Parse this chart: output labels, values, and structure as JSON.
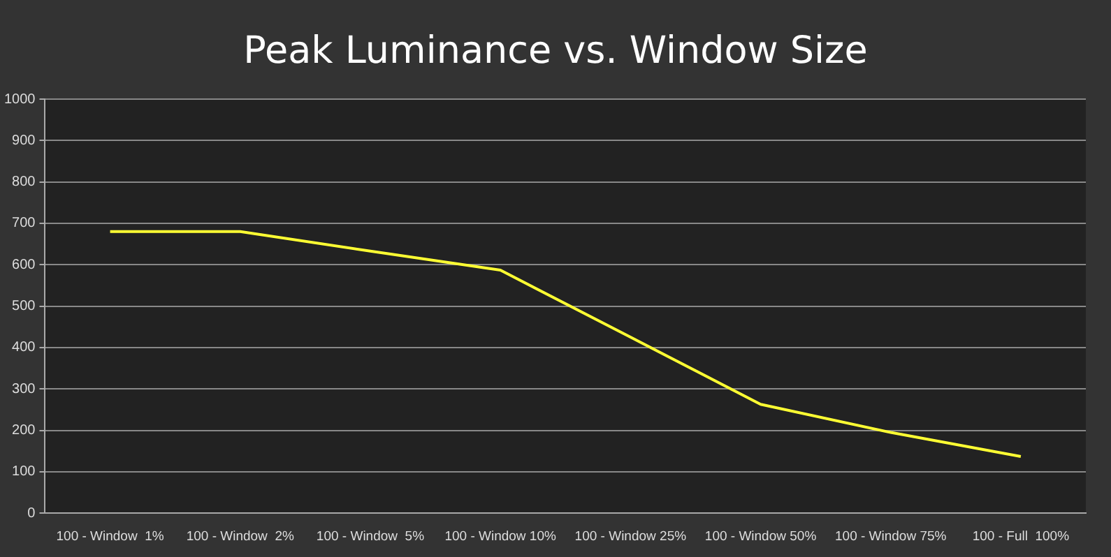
{
  "chart_data": {
    "type": "line",
    "title": "Peak Luminance vs. Window Size",
    "categories": [
      "100 - Window  1%",
      "100 - Window  2%",
      "100 - Window  5%",
      "100 - Window 10%",
      "100 - Window 25%",
      "100 - Window 50%",
      "100 - Window 75%",
      "100 - Full  100%"
    ],
    "series": [
      {
        "color": "#ffff33",
        "values": [
          680,
          680,
          633,
          587,
          425,
          263,
          195,
          137
        ]
      }
    ],
    "ylim": [
      0,
      1000
    ],
    "yticks": [
      0,
      100,
      200,
      300,
      400,
      500,
      600,
      700,
      800,
      900,
      1000
    ],
    "grid": "y",
    "legend": false,
    "marker": "none",
    "line_style": "solid"
  }
}
